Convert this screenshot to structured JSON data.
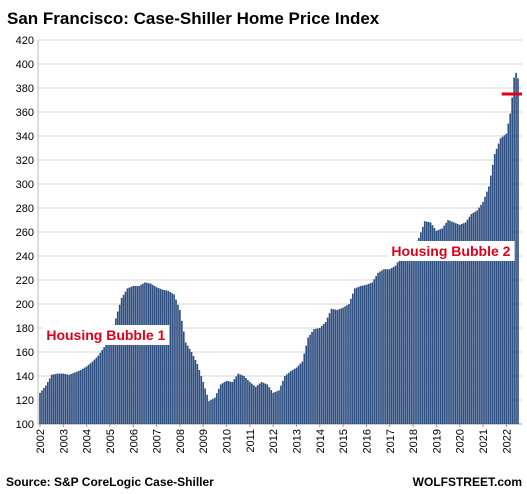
{
  "chart_data": {
    "type": "bar",
    "title": "San Francisco: Case-Shiller Home Price Index",
    "source": "Source: S&P CoreLogic Case-Shiller",
    "brand": "WOLFSTREET.com",
    "ylim": [
      100,
      420
    ],
    "yticks": [
      100,
      120,
      140,
      160,
      180,
      200,
      220,
      240,
      260,
      280,
      300,
      320,
      340,
      360,
      380,
      400,
      420
    ],
    "x_start": 2002,
    "x_end": 2022.5,
    "year_labels": [
      "2002",
      "2003",
      "2004",
      "2005",
      "2006",
      "2007",
      "2008",
      "2009",
      "2010",
      "2011",
      "2012",
      "2013",
      "2014",
      "2015",
      "2016",
      "2017",
      "2018",
      "2019",
      "2020",
      "2021",
      "2022"
    ],
    "grid": true,
    "bar_color": "#2e4e80",
    "reference_color": "#e0001b",
    "reference_value": 375,
    "reference_x": [
      2021.8,
      2022.5
    ],
    "annotations": [
      {
        "label": "Housing Bubble 1",
        "x": 2002.1,
        "y": 170
      },
      {
        "label": "Housing Bubble 2",
        "x": 2016.9,
        "y": 240
      }
    ],
    "monthly_anchors": [
      [
        2002.0,
        126
      ],
      [
        2002.25,
        132
      ],
      [
        2002.5,
        141
      ],
      [
        2002.75,
        142
      ],
      [
        2003.0,
        142
      ],
      [
        2003.25,
        141
      ],
      [
        2003.5,
        143
      ],
      [
        2003.75,
        145
      ],
      [
        2004.0,
        148
      ],
      [
        2004.25,
        152
      ],
      [
        2004.5,
        157
      ],
      [
        2004.75,
        164
      ],
      [
        2005.0,
        172
      ],
      [
        2005.25,
        188
      ],
      [
        2005.5,
        205
      ],
      [
        2005.75,
        213
      ],
      [
        2006.0,
        215
      ],
      [
        2006.25,
        215
      ],
      [
        2006.5,
        218
      ],
      [
        2006.75,
        217
      ],
      [
        2007.0,
        214
      ],
      [
        2007.25,
        212
      ],
      [
        2007.5,
        211
      ],
      [
        2007.75,
        208
      ],
      [
        2008.0,
        195
      ],
      [
        2008.25,
        168
      ],
      [
        2008.5,
        160
      ],
      [
        2008.75,
        150
      ],
      [
        2009.0,
        135
      ],
      [
        2009.25,
        119
      ],
      [
        2009.5,
        122
      ],
      [
        2009.75,
        133
      ],
      [
        2010.0,
        136
      ],
      [
        2010.25,
        135
      ],
      [
        2010.5,
        142
      ],
      [
        2010.75,
        140
      ],
      [
        2011.0,
        135
      ],
      [
        2011.25,
        131
      ],
      [
        2011.5,
        135
      ],
      [
        2011.75,
        133
      ],
      [
        2012.0,
        126
      ],
      [
        2012.25,
        128
      ],
      [
        2012.5,
        140
      ],
      [
        2012.75,
        144
      ],
      [
        2013.0,
        147
      ],
      [
        2013.25,
        152
      ],
      [
        2013.5,
        172
      ],
      [
        2013.75,
        179
      ],
      [
        2014.0,
        180
      ],
      [
        2014.25,
        185
      ],
      [
        2014.5,
        196
      ],
      [
        2014.75,
        195
      ],
      [
        2015.0,
        197
      ],
      [
        2015.25,
        200
      ],
      [
        2015.5,
        213
      ],
      [
        2015.75,
        215
      ],
      [
        2016.0,
        216
      ],
      [
        2016.25,
        218
      ],
      [
        2016.5,
        226
      ],
      [
        2016.75,
        229
      ],
      [
        2017.0,
        229
      ],
      [
        2017.25,
        232
      ],
      [
        2017.5,
        240
      ],
      [
        2017.75,
        245
      ],
      [
        2018.0,
        248
      ],
      [
        2018.25,
        255
      ],
      [
        2018.5,
        269
      ],
      [
        2018.75,
        268
      ],
      [
        2019.0,
        261
      ],
      [
        2019.25,
        263
      ],
      [
        2019.5,
        270
      ],
      [
        2019.75,
        268
      ],
      [
        2020.0,
        266
      ],
      [
        2020.25,
        268
      ],
      [
        2020.5,
        275
      ],
      [
        2020.75,
        278
      ],
      [
        2021.0,
        285
      ],
      [
        2021.25,
        298
      ],
      [
        2021.5,
        325
      ],
      [
        2021.75,
        338
      ],
      [
        2022.0,
        342
      ],
      [
        2022.2,
        362
      ],
      [
        2022.35,
        392
      ],
      [
        2022.45,
        393
      ],
      [
        2022.5,
        388
      ]
    ]
  }
}
